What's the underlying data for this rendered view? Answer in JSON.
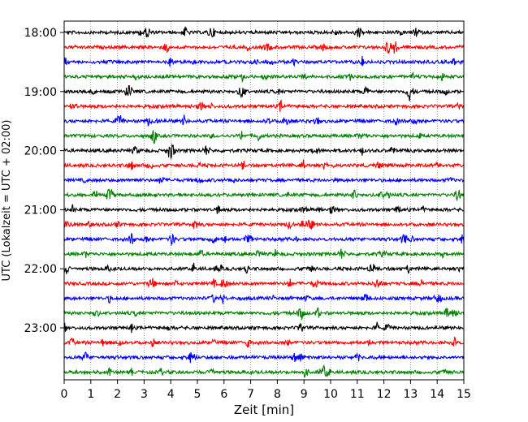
{
  "chart_data": {
    "type": "line",
    "xlabel": "Zeit  [min]",
    "ylabel": "UTC (Lokalzeit = UTC + 02:00)",
    "xlim": [
      0,
      15
    ],
    "x_ticks": [
      "0",
      "1",
      "2",
      "3",
      "4",
      "5",
      "6",
      "7",
      "8",
      "9",
      "10",
      "11",
      "12",
      "13",
      "14",
      "15"
    ],
    "y_ticks": [
      "18:00",
      "19:00",
      "20:00",
      "21:00",
      "22:00",
      "23:00"
    ],
    "trace_interval_min": 15,
    "grid": "vertical-dotted",
    "colors": [
      "#000000",
      "#ff0000",
      "#0000ff",
      "#008000"
    ],
    "traces": [
      {
        "start": "18:00",
        "color": "#000000"
      },
      {
        "start": "18:15",
        "color": "#ff0000"
      },
      {
        "start": "18:30",
        "color": "#0000ff"
      },
      {
        "start": "18:45",
        "color": "#008000"
      },
      {
        "start": "19:00",
        "color": "#000000"
      },
      {
        "start": "19:15",
        "color": "#ff0000"
      },
      {
        "start": "19:30",
        "color": "#0000ff"
      },
      {
        "start": "19:45",
        "color": "#008000"
      },
      {
        "start": "20:00",
        "color": "#000000"
      },
      {
        "start": "20:15",
        "color": "#ff0000"
      },
      {
        "start": "20:30",
        "color": "#0000ff"
      },
      {
        "start": "20:45",
        "color": "#008000"
      },
      {
        "start": "21:00",
        "color": "#000000"
      },
      {
        "start": "21:15",
        "color": "#ff0000"
      },
      {
        "start": "21:30",
        "color": "#0000ff"
      },
      {
        "start": "21:45",
        "color": "#008000"
      },
      {
        "start": "22:00",
        "color": "#000000"
      },
      {
        "start": "22:15",
        "color": "#ff0000"
      },
      {
        "start": "22:30",
        "color": "#0000ff"
      },
      {
        "start": "22:45",
        "color": "#008000"
      },
      {
        "start": "23:00",
        "color": "#000000"
      },
      {
        "start": "23:15",
        "color": "#ff0000"
      },
      {
        "start": "23:30",
        "color": "#0000ff"
      },
      {
        "start": "23:45",
        "color": "#008000"
      }
    ]
  }
}
